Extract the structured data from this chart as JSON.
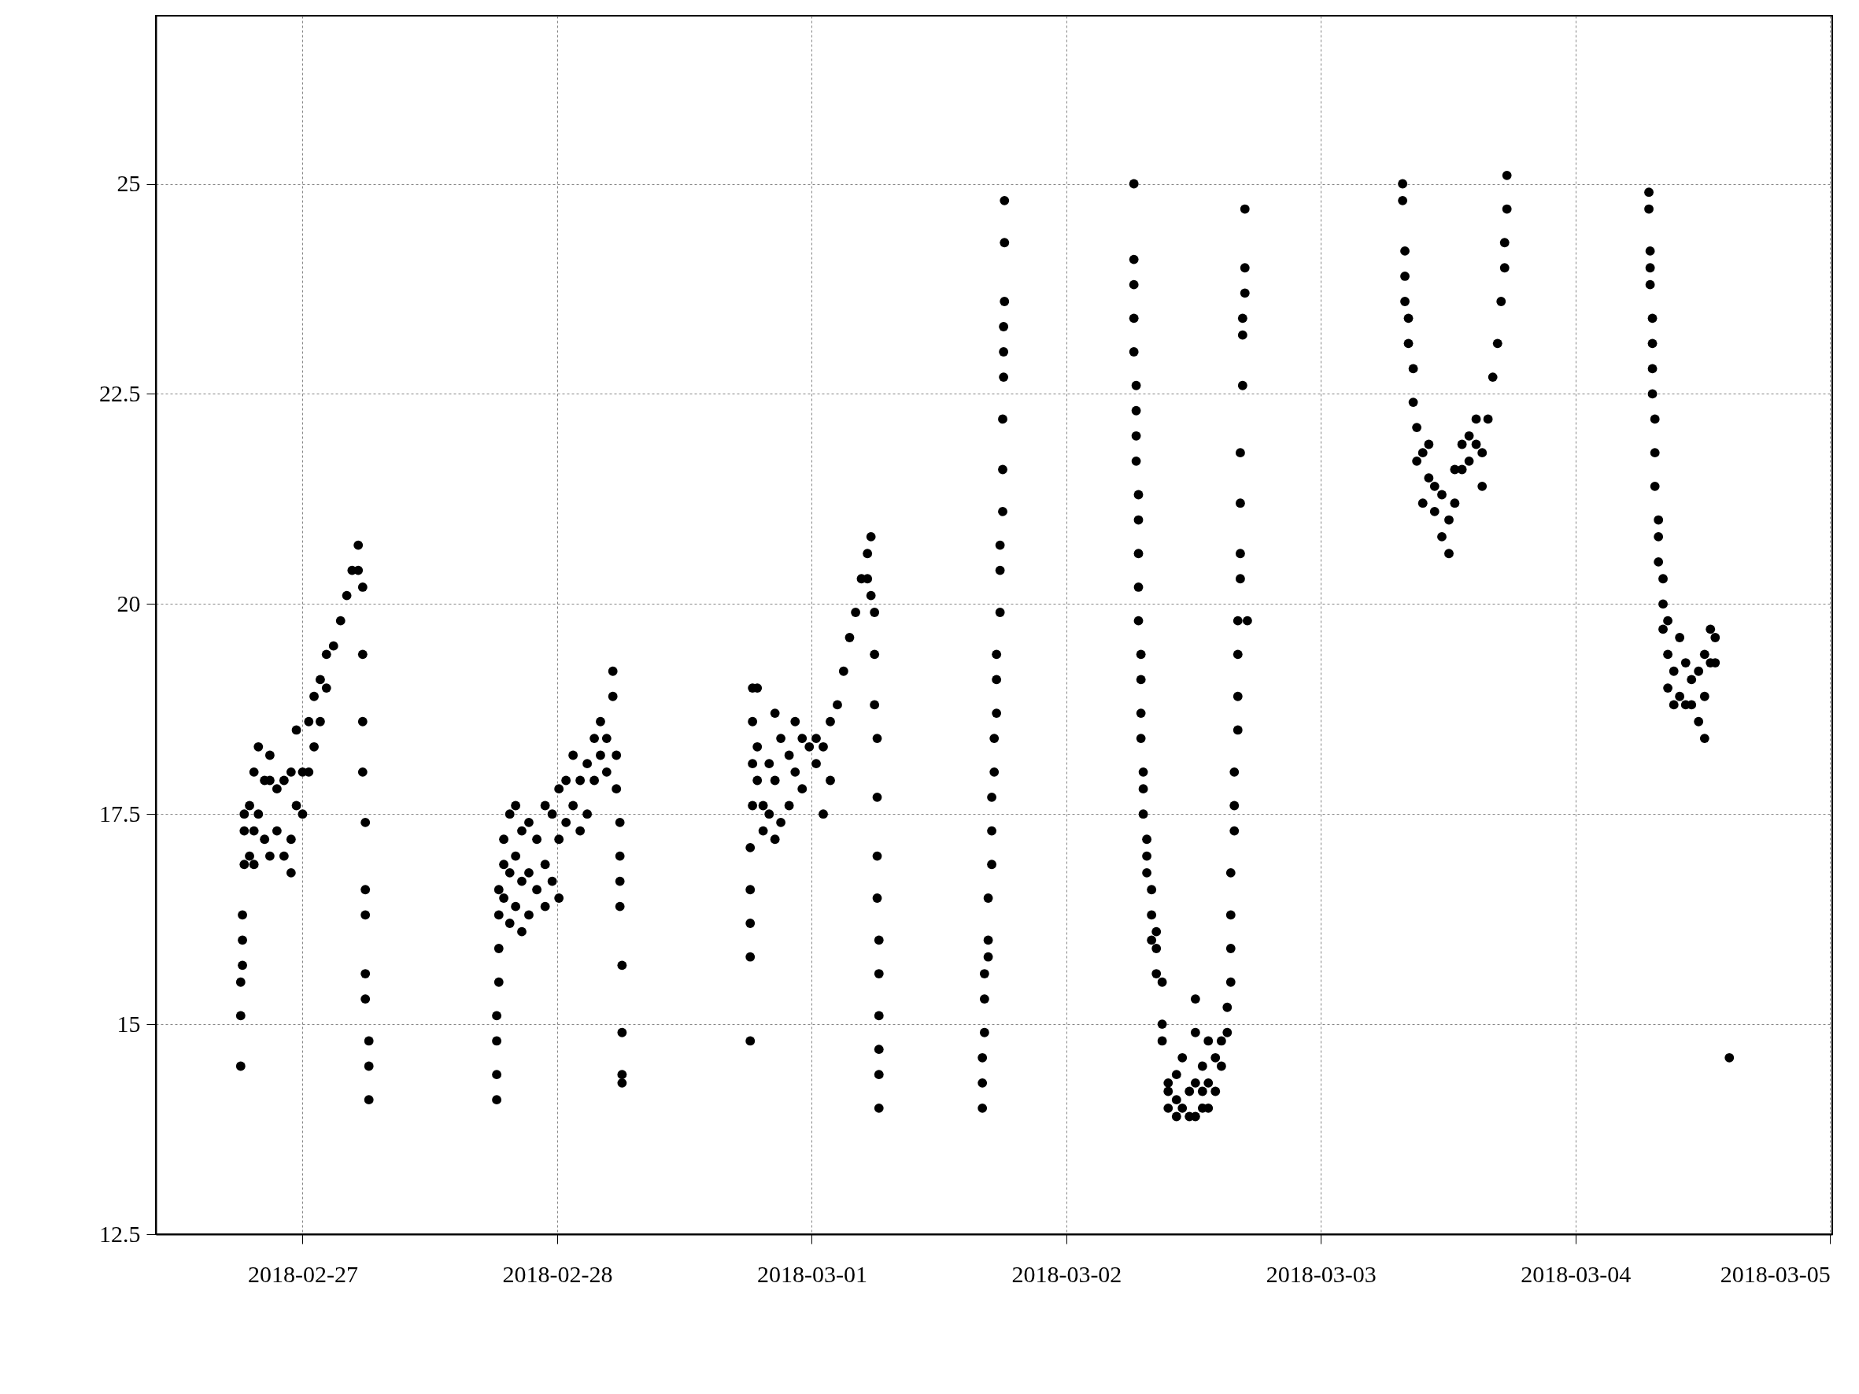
{
  "chart_data": {
    "type": "scatter",
    "marker": "circle",
    "grid": true,
    "legend": false,
    "xlim": [
      "2018-02-26T10:10",
      "2018-03-05T00:12"
    ],
    "xticks": [
      "2018-02-27",
      "2018-02-28",
      "2018-03-01",
      "2018-03-02",
      "2018-03-03",
      "2018-03-04",
      "2018-03-05"
    ],
    "ylim": [
      12.5,
      27
    ],
    "yticks": [
      12.5,
      15,
      17.5,
      20,
      22.5,
      25
    ],
    "series": [
      {
        "color": "#000000",
        "x": [
          "2018-02-26T18:10",
          "2018-02-26T18:10",
          "2018-02-26T18:10",
          "2018-02-26T18:20",
          "2018-02-26T18:20",
          "2018-02-26T18:20",
          "2018-02-26T18:30",
          "2018-02-26T18:30",
          "2018-02-26T18:30",
          "2018-02-26T19:00",
          "2018-02-26T19:00",
          "2018-02-26T19:25",
          "2018-02-26T19:25",
          "2018-02-26T19:25",
          "2018-02-26T19:50",
          "2018-02-26T19:50",
          "2018-02-26T20:25",
          "2018-02-26T20:25",
          "2018-02-26T20:55",
          "2018-02-26T20:55",
          "2018-02-26T20:55",
          "2018-02-26T21:35",
          "2018-02-26T21:35",
          "2018-02-26T22:15",
          "2018-02-26T22:15",
          "2018-02-26T22:55",
          "2018-02-26T22:55",
          "2018-02-26T22:55",
          "2018-02-26T23:25",
          "2018-02-26T23:25",
          "2018-02-27T00:00",
          "2018-02-27T00:00",
          "2018-02-27T00:35",
          "2018-02-27T00:35",
          "2018-02-27T01:05",
          "2018-02-27T01:05",
          "2018-02-27T01:40",
          "2018-02-27T01:40",
          "2018-02-27T02:15",
          "2018-02-27T02:15",
          "2018-02-27T02:55",
          "2018-02-27T03:35",
          "2018-02-27T04:10",
          "2018-02-27T04:40",
          "2018-02-27T05:15",
          "2018-02-27T05:15",
          "2018-02-27T05:40",
          "2018-02-27T05:40",
          "2018-02-27T05:40",
          "2018-02-27T05:40",
          "2018-02-27T05:55",
          "2018-02-27T05:55",
          "2018-02-27T05:55",
          "2018-02-27T05:55",
          "2018-02-27T05:55",
          "2018-02-27T06:15",
          "2018-02-27T06:15",
          "2018-02-27T06:15",
          "2018-02-27T18:18",
          "2018-02-27T18:18",
          "2018-02-27T18:18",
          "2018-02-27T18:18",
          "2018-02-27T18:30",
          "2018-02-27T18:30",
          "2018-02-27T18:30",
          "2018-02-27T18:30",
          "2018-02-27T18:58",
          "2018-02-27T18:58",
          "2018-02-27T18:58",
          "2018-02-27T19:32",
          "2018-02-27T19:32",
          "2018-02-27T19:32",
          "2018-02-27T20:05",
          "2018-02-27T20:05",
          "2018-02-27T20:05",
          "2018-02-27T20:40",
          "2018-02-27T20:40",
          "2018-02-27T20:40",
          "2018-02-27T21:20",
          "2018-02-27T21:20",
          "2018-02-27T21:20",
          "2018-02-27T22:05",
          "2018-02-27T22:05",
          "2018-02-27T22:52",
          "2018-02-27T22:52",
          "2018-02-27T22:52",
          "2018-02-27T23:32",
          "2018-02-27T23:32",
          "2018-02-28T00:10",
          "2018-02-28T00:10",
          "2018-02-28T00:10",
          "2018-02-28T00:50",
          "2018-02-28T00:50",
          "2018-02-28T01:30",
          "2018-02-28T01:30",
          "2018-02-28T02:10",
          "2018-02-28T02:10",
          "2018-02-28T02:50",
          "2018-02-28T02:50",
          "2018-02-28T03:30",
          "2018-02-28T03:30",
          "2018-02-28T04:05",
          "2018-02-28T04:05",
          "2018-02-28T04:40",
          "2018-02-28T04:40",
          "2018-02-28T05:15",
          "2018-02-28T05:15",
          "2018-02-28T05:35",
          "2018-02-28T05:35",
          "2018-02-28T05:55",
          "2018-02-28T05:55",
          "2018-02-28T05:55",
          "2018-02-28T05:55",
          "2018-02-28T06:07",
          "2018-02-28T06:07",
          "2018-02-28T06:07",
          "2018-02-28T06:07",
          "2018-02-28T18:12",
          "2018-02-28T18:12",
          "2018-02-28T18:12",
          "2018-02-28T18:12",
          "2018-02-28T18:12",
          "2018-02-28T18:25",
          "2018-02-28T18:25",
          "2018-02-28T18:25",
          "2018-02-28T18:25",
          "2018-02-28T18:52",
          "2018-02-28T18:52",
          "2018-02-28T18:52",
          "2018-02-28T19:25",
          "2018-02-28T19:25",
          "2018-02-28T19:59",
          "2018-02-28T19:59",
          "2018-02-28T20:32",
          "2018-02-28T20:32",
          "2018-02-28T20:32",
          "2018-02-28T21:05",
          "2018-02-28T21:05",
          "2018-02-28T21:52",
          "2018-02-28T21:52",
          "2018-02-28T22:26",
          "2018-02-28T22:26",
          "2018-02-28T23:06",
          "2018-02-28T23:06",
          "2018-02-28T23:46",
          "2018-03-01T00:25",
          "2018-03-01T00:25",
          "2018-03-01T01:05",
          "2018-03-01T01:05",
          "2018-03-01T01:45",
          "2018-03-01T01:45",
          "2018-03-01T02:25",
          "2018-03-01T03:00",
          "2018-03-01T03:34",
          "2018-03-01T04:08",
          "2018-03-01T04:41",
          "2018-03-01T05:15",
          "2018-03-01T05:15",
          "2018-03-01T05:35",
          "2018-03-01T05:35",
          "2018-03-01T05:55",
          "2018-03-01T05:55",
          "2018-03-01T05:55",
          "2018-03-01T06:10",
          "2018-03-01T06:10",
          "2018-03-01T06:10",
          "2018-03-01T06:10",
          "2018-03-01T06:20",
          "2018-03-01T06:20",
          "2018-03-01T06:20",
          "2018-03-01T06:20",
          "2018-03-01T06:20",
          "2018-03-01T06:20",
          "2018-03-01T16:05",
          "2018-03-01T16:05",
          "2018-03-01T16:05",
          "2018-03-01T16:17",
          "2018-03-01T16:17",
          "2018-03-01T16:17",
          "2018-03-01T16:38",
          "2018-03-01T16:38",
          "2018-03-01T16:38",
          "2018-03-01T16:58",
          "2018-03-01T16:58",
          "2018-03-01T16:58",
          "2018-03-01T17:12",
          "2018-03-01T17:12",
          "2018-03-01T17:25",
          "2018-03-01T17:25",
          "2018-03-01T17:25",
          "2018-03-01T17:45",
          "2018-03-01T17:45",
          "2018-03-01T17:45",
          "2018-03-01T18:00",
          "2018-03-01T18:00",
          "2018-03-01T18:00",
          "2018-03-01T18:05",
          "2018-03-01T18:05",
          "2018-03-01T18:05",
          "2018-03-01T18:10",
          "2018-03-01T18:10",
          "2018-03-01T18:10",
          "2018-03-02T06:22",
          "2018-03-02T06:22",
          "2018-03-02T06:22",
          "2018-03-02T06:22",
          "2018-03-02T06:22",
          "2018-03-02T06:35",
          "2018-03-02T06:35",
          "2018-03-02T06:35",
          "2018-03-02T06:35",
          "2018-03-02T06:48",
          "2018-03-02T06:48",
          "2018-03-02T06:48",
          "2018-03-02T06:48",
          "2018-03-02T06:48",
          "2018-03-02T07:02",
          "2018-03-02T07:02",
          "2018-03-02T07:02",
          "2018-03-02T07:02",
          "2018-03-02T07:15",
          "2018-03-02T07:15",
          "2018-03-02T07:15",
          "2018-03-02T07:35",
          "2018-03-02T07:35",
          "2018-03-02T07:35",
          "2018-03-02T08:02",
          "2018-03-02T08:02",
          "2018-03-02T08:02",
          "2018-03-02T08:29",
          "2018-03-02T08:29",
          "2018-03-02T08:29",
          "2018-03-02T09:02",
          "2018-03-02T09:02",
          "2018-03-02T09:02",
          "2018-03-02T09:36",
          "2018-03-02T09:36",
          "2018-03-02T09:36",
          "2018-03-02T10:23",
          "2018-03-02T10:23",
          "2018-03-02T10:23",
          "2018-03-02T10:56",
          "2018-03-02T10:56",
          "2018-03-02T11:36",
          "2018-03-02T11:36",
          "2018-03-02T12:10",
          "2018-03-02T12:10",
          "2018-03-02T12:10",
          "2018-03-02T12:10",
          "2018-03-02T12:50",
          "2018-03-02T12:50",
          "2018-03-02T12:50",
          "2018-03-02T13:23",
          "2018-03-02T13:23",
          "2018-03-02T13:23",
          "2018-03-02T14:03",
          "2018-03-02T14:03",
          "2018-03-02T14:37",
          "2018-03-02T14:37",
          "2018-03-02T15:10",
          "2018-03-02T15:10",
          "2018-03-02T15:30",
          "2018-03-02T15:30",
          "2018-03-02T15:30",
          "2018-03-02T15:30",
          "2018-03-02T15:50",
          "2018-03-02T15:50",
          "2018-03-02T15:50",
          "2018-03-02T16:10",
          "2018-03-02T16:10",
          "2018-03-02T16:10",
          "2018-03-02T16:10",
          "2018-03-02T16:24",
          "2018-03-02T16:24",
          "2018-03-02T16:24",
          "2018-03-02T16:24",
          "2018-03-02T16:37",
          "2018-03-02T16:37",
          "2018-03-02T16:37",
          "2018-03-02T16:50",
          "2018-03-02T16:50",
          "2018-03-02T16:50",
          "2018-03-02T17:04",
          "2018-03-03T07:42",
          "2018-03-03T07:42",
          "2018-03-03T07:55",
          "2018-03-03T07:55",
          "2018-03-03T07:55",
          "2018-03-03T08:15",
          "2018-03-03T08:15",
          "2018-03-03T08:42",
          "2018-03-03T08:42",
          "2018-03-03T09:02",
          "2018-03-03T09:02",
          "2018-03-03T09:36",
          "2018-03-03T09:36",
          "2018-03-03T10:10",
          "2018-03-03T10:10",
          "2018-03-03T10:43",
          "2018-03-03T10:43",
          "2018-03-03T11:24",
          "2018-03-03T11:24",
          "2018-03-03T12:04",
          "2018-03-03T12:04",
          "2018-03-03T12:37",
          "2018-03-03T12:37",
          "2018-03-03T13:18",
          "2018-03-03T13:18",
          "2018-03-03T13:58",
          "2018-03-03T13:58",
          "2018-03-03T14:38",
          "2018-03-03T14:38",
          "2018-03-03T15:12",
          "2018-03-03T15:12",
          "2018-03-03T15:45",
          "2018-03-03T16:12",
          "2018-03-03T16:39",
          "2018-03-03T16:59",
          "2018-03-03T17:19",
          "2018-03-03T17:19",
          "2018-03-03T17:32",
          "2018-03-03T17:32",
          "2018-03-04T06:55",
          "2018-03-04T06:55",
          "2018-03-04T07:02",
          "2018-03-04T07:02",
          "2018-03-04T07:02",
          "2018-03-04T07:15",
          "2018-03-04T07:15",
          "2018-03-04T07:15",
          "2018-03-04T07:15",
          "2018-03-04T07:29",
          "2018-03-04T07:29",
          "2018-03-04T07:29",
          "2018-03-04T07:49",
          "2018-03-04T07:49",
          "2018-03-04T07:49",
          "2018-03-04T08:15",
          "2018-03-04T08:15",
          "2018-03-04T08:15",
          "2018-03-04T08:42",
          "2018-03-04T08:42",
          "2018-03-04T08:42",
          "2018-03-04T09:16",
          "2018-03-04T09:16",
          "2018-03-04T09:49",
          "2018-03-04T09:49",
          "2018-03-04T10:23",
          "2018-03-04T10:23",
          "2018-03-04T10:56",
          "2018-03-04T10:56",
          "2018-03-04T11:36",
          "2018-03-04T11:36",
          "2018-03-04T12:10",
          "2018-03-04T12:10",
          "2018-03-04T12:10",
          "2018-03-04T12:43",
          "2018-03-04T12:43",
          "2018-03-04T13:10",
          "2018-03-04T13:10",
          "2018-03-04T14:30"
        ],
        "values": [
          14.5,
          15.1,
          15.5,
          15.7,
          16.0,
          16.3,
          16.9,
          17.3,
          17.5,
          17.0,
          17.6,
          18.0,
          17.3,
          16.9,
          18.3,
          17.5,
          17.9,
          17.2,
          17.9,
          17.0,
          18.2,
          17.8,
          17.3,
          17.9,
          17.0,
          17.2,
          16.8,
          18.0,
          18.5,
          17.6,
          18.0,
          17.5,
          18.6,
          18.0,
          18.9,
          18.3,
          19.1,
          18.6,
          19.4,
          19.0,
          19.5,
          19.8,
          20.1,
          20.4,
          20.7,
          20.4,
          20.2,
          19.4,
          18.6,
          18.0,
          17.4,
          16.6,
          16.3,
          15.6,
          15.3,
          14.8,
          14.5,
          14.1,
          14.1,
          14.4,
          14.8,
          15.1,
          15.5,
          15.9,
          16.3,
          16.6,
          16.9,
          17.2,
          16.5,
          17.5,
          16.8,
          16.2,
          17.6,
          17.0,
          16.4,
          17.3,
          16.7,
          16.1,
          17.4,
          16.8,
          16.3,
          17.2,
          16.6,
          17.6,
          16.9,
          16.4,
          17.5,
          16.7,
          17.8,
          17.2,
          16.5,
          17.9,
          17.4,
          18.2,
          17.6,
          17.9,
          17.3,
          18.1,
          17.5,
          18.4,
          17.9,
          18.6,
          18.2,
          18.4,
          18.0,
          19.2,
          18.9,
          18.2,
          17.8,
          17.4,
          17.0,
          16.7,
          16.4,
          15.7,
          14.9,
          14.4,
          14.3,
          14.8,
          15.8,
          16.2,
          16.6,
          17.1,
          17.6,
          18.1,
          18.6,
          19.0,
          18.3,
          17.9,
          19.0,
          17.6,
          17.3,
          18.1,
          17.5,
          18.7,
          17.9,
          17.2,
          18.4,
          17.4,
          18.2,
          17.6,
          18.6,
          18.0,
          18.4,
          17.8,
          18.3,
          18.1,
          18.4,
          18.3,
          17.5,
          18.6,
          17.9,
          18.8,
          19.2,
          19.6,
          19.9,
          20.3,
          20.6,
          20.3,
          20.8,
          20.1,
          19.9,
          19.4,
          18.8,
          18.4,
          17.7,
          17.0,
          16.5,
          16.0,
          15.6,
          15.1,
          14.7,
          14.4,
          14.0,
          14.0,
          14.3,
          14.6,
          14.9,
          15.3,
          15.6,
          15.8,
          16.0,
          16.5,
          16.9,
          17.3,
          17.7,
          18.0,
          18.4,
          18.7,
          19.1,
          19.4,
          19.9,
          20.4,
          20.7,
          21.1,
          21.6,
          22.2,
          22.7,
          23.0,
          23.3,
          23.6,
          24.3,
          24.8,
          25.0,
          24.1,
          23.8,
          23.4,
          23.0,
          22.6,
          22.3,
          22.0,
          21.7,
          21.3,
          21.0,
          20.6,
          20.2,
          19.8,
          19.4,
          19.1,
          18.7,
          18.4,
          18.0,
          17.8,
          17.5,
          17.2,
          17.0,
          16.8,
          16.6,
          16.3,
          16.0,
          15.9,
          15.6,
          16.1,
          15.5,
          15.0,
          14.8,
          14.3,
          14.0,
          14.2,
          14.1,
          13.9,
          14.4,
          14.0,
          14.6,
          14.2,
          13.9,
          15.3,
          14.9,
          14.3,
          13.9,
          14.0,
          14.5,
          14.2,
          14.8,
          14.3,
          14.0,
          14.2,
          14.6,
          14.5,
          14.8,
          14.9,
          15.2,
          15.5,
          15.9,
          16.3,
          16.8,
          17.3,
          17.6,
          18.0,
          18.5,
          18.9,
          19.4,
          19.8,
          20.3,
          20.6,
          21.2,
          21.8,
          22.6,
          23.2,
          23.4,
          23.7,
          24.0,
          24.7,
          19.8,
          25.0,
          24.8,
          24.2,
          23.9,
          23.6,
          23.4,
          23.1,
          22.8,
          22.4,
          22.1,
          21.7,
          21.8,
          21.2,
          21.9,
          21.5,
          21.4,
          21.1,
          21.3,
          20.8,
          21.0,
          20.6,
          21.6,
          21.2,
          21.9,
          21.6,
          22.0,
          21.7,
          22.2,
          21.9,
          21.4,
          21.8,
          22.2,
          22.7,
          23.1,
          23.6,
          24.0,
          24.3,
          24.7,
          25.1,
          24.9,
          24.7,
          24.2,
          24.0,
          23.8,
          23.4,
          23.1,
          22.8,
          22.5,
          22.2,
          21.8,
          21.4,
          21.0,
          20.8,
          20.5,
          20.3,
          20.0,
          19.7,
          19.8,
          19.4,
          19.0,
          19.2,
          18.8,
          19.6,
          18.9,
          19.3,
          18.8,
          18.8,
          19.1,
          19.2,
          18.6,
          19.4,
          18.9,
          18.4,
          19.7,
          19.3,
          19.6,
          19.3,
          14.6
        ]
      }
    ]
  }
}
